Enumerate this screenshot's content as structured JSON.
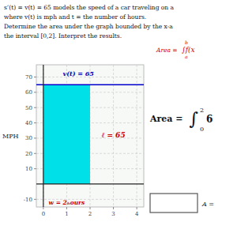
{
  "chart_data": {
    "type": "area",
    "annotations": [
      {
        "text": "s’(t) =  v(t) = 65 models the speed of a car traveling on a",
        "color": "#111111"
      },
      {
        "text": "where v(t) is mph and t = the number of hours.",
        "color": "#111111"
      },
      {
        "text": "Determine the area under the graph bounded by the x-a",
        "color": "#111111"
      },
      {
        "text": "the interval [0,2].  Interpret the results.",
        "color": "#111111"
      },
      {
        "text": "Area =",
        "color": "#cc0000"
      },
      {
        "text": "∫f(x",
        "color": "#cc0000"
      },
      {
        "text": "b",
        "color": "#cc0000"
      },
      {
        "text": "a",
        "color": "#cc0000"
      },
      {
        "text": "v(t) = 65",
        "color": "#0000cc"
      },
      {
        "text": "ℓ = 65",
        "color": "#cc0000"
      },
      {
        "text": "w = 2ₕours",
        "color": "#cc0000"
      },
      {
        "text": "Area =",
        "color": "#111111"
      },
      {
        "text": "∫",
        "color": "#111111"
      },
      {
        "text": "2",
        "color": "#111111"
      },
      {
        "text": "0",
        "color": "#111111"
      },
      {
        "text": "6",
        "color": "#111111"
      },
      {
        "text": "A =",
        "color": "#111111"
      }
    ],
    "ylabel": "MPH",
    "xlim": [
      -0.3,
      4.3
    ],
    "ylim": [
      -15,
      78
    ],
    "xticks": [
      0,
      1,
      2,
      3,
      4
    ],
    "yticks": [
      -10,
      10,
      20,
      30,
      40,
      50,
      60,
      70
    ],
    "grid": true,
    "series": [
      {
        "type": "area",
        "color": "#00e0e8",
        "x": [
          0,
          2
        ],
        "values": [
          65,
          65
        ]
      }
    ],
    "reference_line": {
      "value": 65,
      "color": "#0000cc"
    }
  }
}
